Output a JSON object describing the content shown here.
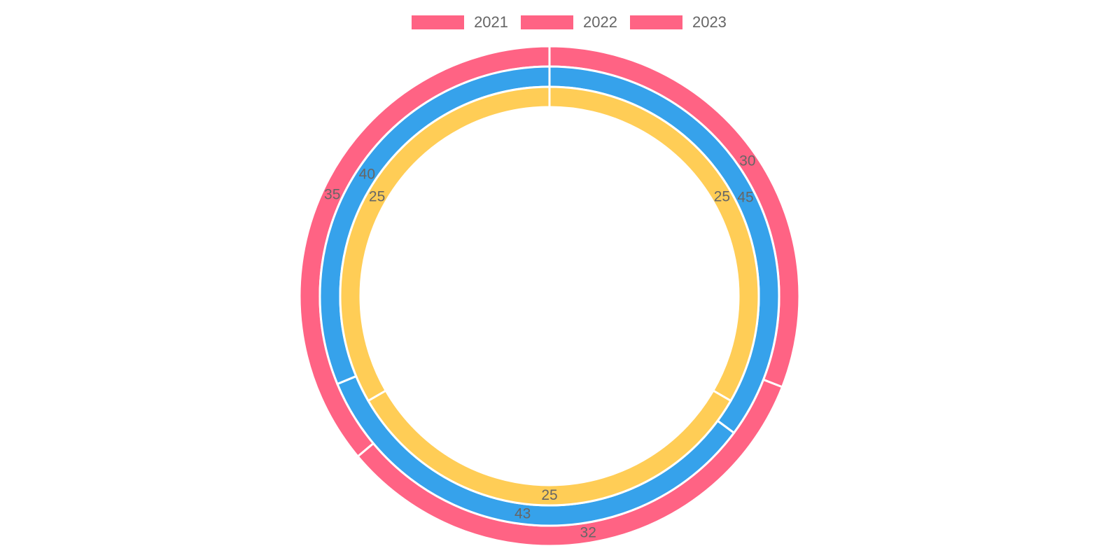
{
  "chart_data": {
    "type": "pie",
    "variant": "nested-doughnut",
    "legend": {
      "placement": "top",
      "entries": [
        {
          "label": "2021",
          "color": "#ff6384"
        },
        {
          "label": "2022",
          "color": "#ff6384"
        },
        {
          "label": "2023",
          "color": "#ff6384"
        }
      ]
    },
    "series": [
      {
        "ring": "outer",
        "color": "#ff6384",
        "values": [
          30,
          32,
          35
        ]
      },
      {
        "ring": "middle",
        "color": "#36a2eb",
        "values": [
          45,
          43,
          40
        ]
      },
      {
        "ring": "inner",
        "color": "#ffcd56",
        "values": [
          25,
          25,
          25
        ]
      }
    ]
  }
}
